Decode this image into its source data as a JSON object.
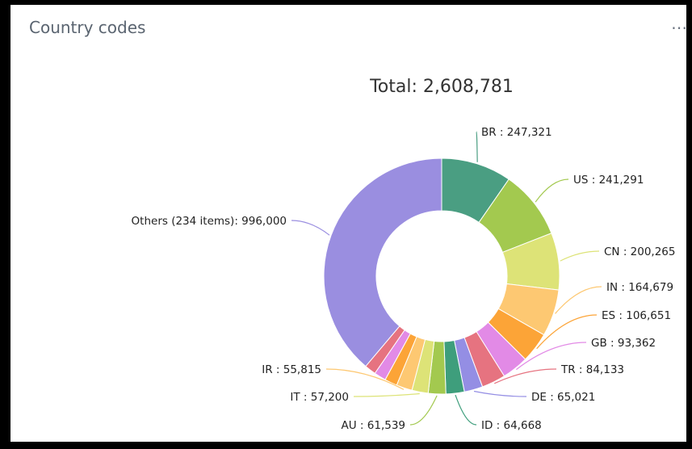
{
  "panel": {
    "title": "Country codes",
    "menu_icon": "ellipsis-icon"
  },
  "chart_data": {
    "type": "pie",
    "style": "donut",
    "total_label": "Total: 2,608,781",
    "total": 2608781,
    "slices": [
      {
        "name": "BR",
        "value": 247321,
        "label": "BR : 247,321",
        "color": "#4a9e82"
      },
      {
        "name": "US",
        "value": 241291,
        "label": "US : 241,291",
        "color": "#a3c94f"
      },
      {
        "name": "CN",
        "value": 200265,
        "label": "CN : 200,265",
        "color": "#dde377"
      },
      {
        "name": "IN",
        "value": 164679,
        "label": "IN : 164,679",
        "color": "#fdc872"
      },
      {
        "name": "ES",
        "value": 106651,
        "label": "ES : 106,651",
        "color": "#fca437"
      },
      {
        "name": "GB",
        "value": 93362,
        "label": "GB : 93,362",
        "color": "#e28ae6"
      },
      {
        "name": "TR",
        "value": 84133,
        "label": "TR : 84,133",
        "color": "#e67380"
      },
      {
        "name": "DE",
        "value": 65021,
        "label": "DE : 65,021",
        "color": "#948ee4"
      },
      {
        "name": "ID",
        "value": 64668,
        "label": "ID : 64,668",
        "color": "#3e9e7c"
      },
      {
        "name": "AU",
        "value": 61539,
        "label": "AU : 61,539",
        "color": "#a3c94f"
      },
      {
        "name": "IT",
        "value": 57200,
        "label": "IT : 57,200",
        "color": "#dde377"
      },
      {
        "name": "IR",
        "value": 55815,
        "label": "IR : 55,815",
        "color": "#fdc872"
      },
      {
        "name": "",
        "value": 44000,
        "label": "",
        "color": "#fca437"
      },
      {
        "name": "",
        "value": 42000,
        "label": "",
        "color": "#e28ae6"
      },
      {
        "name": "",
        "value": 40000,
        "label": "",
        "color": "#e67380"
      },
      {
        "name": "Others (234 items)",
        "value": 996000,
        "label": "Others (234 items): 996,000",
        "color": "#9a8ee0"
      }
    ]
  }
}
